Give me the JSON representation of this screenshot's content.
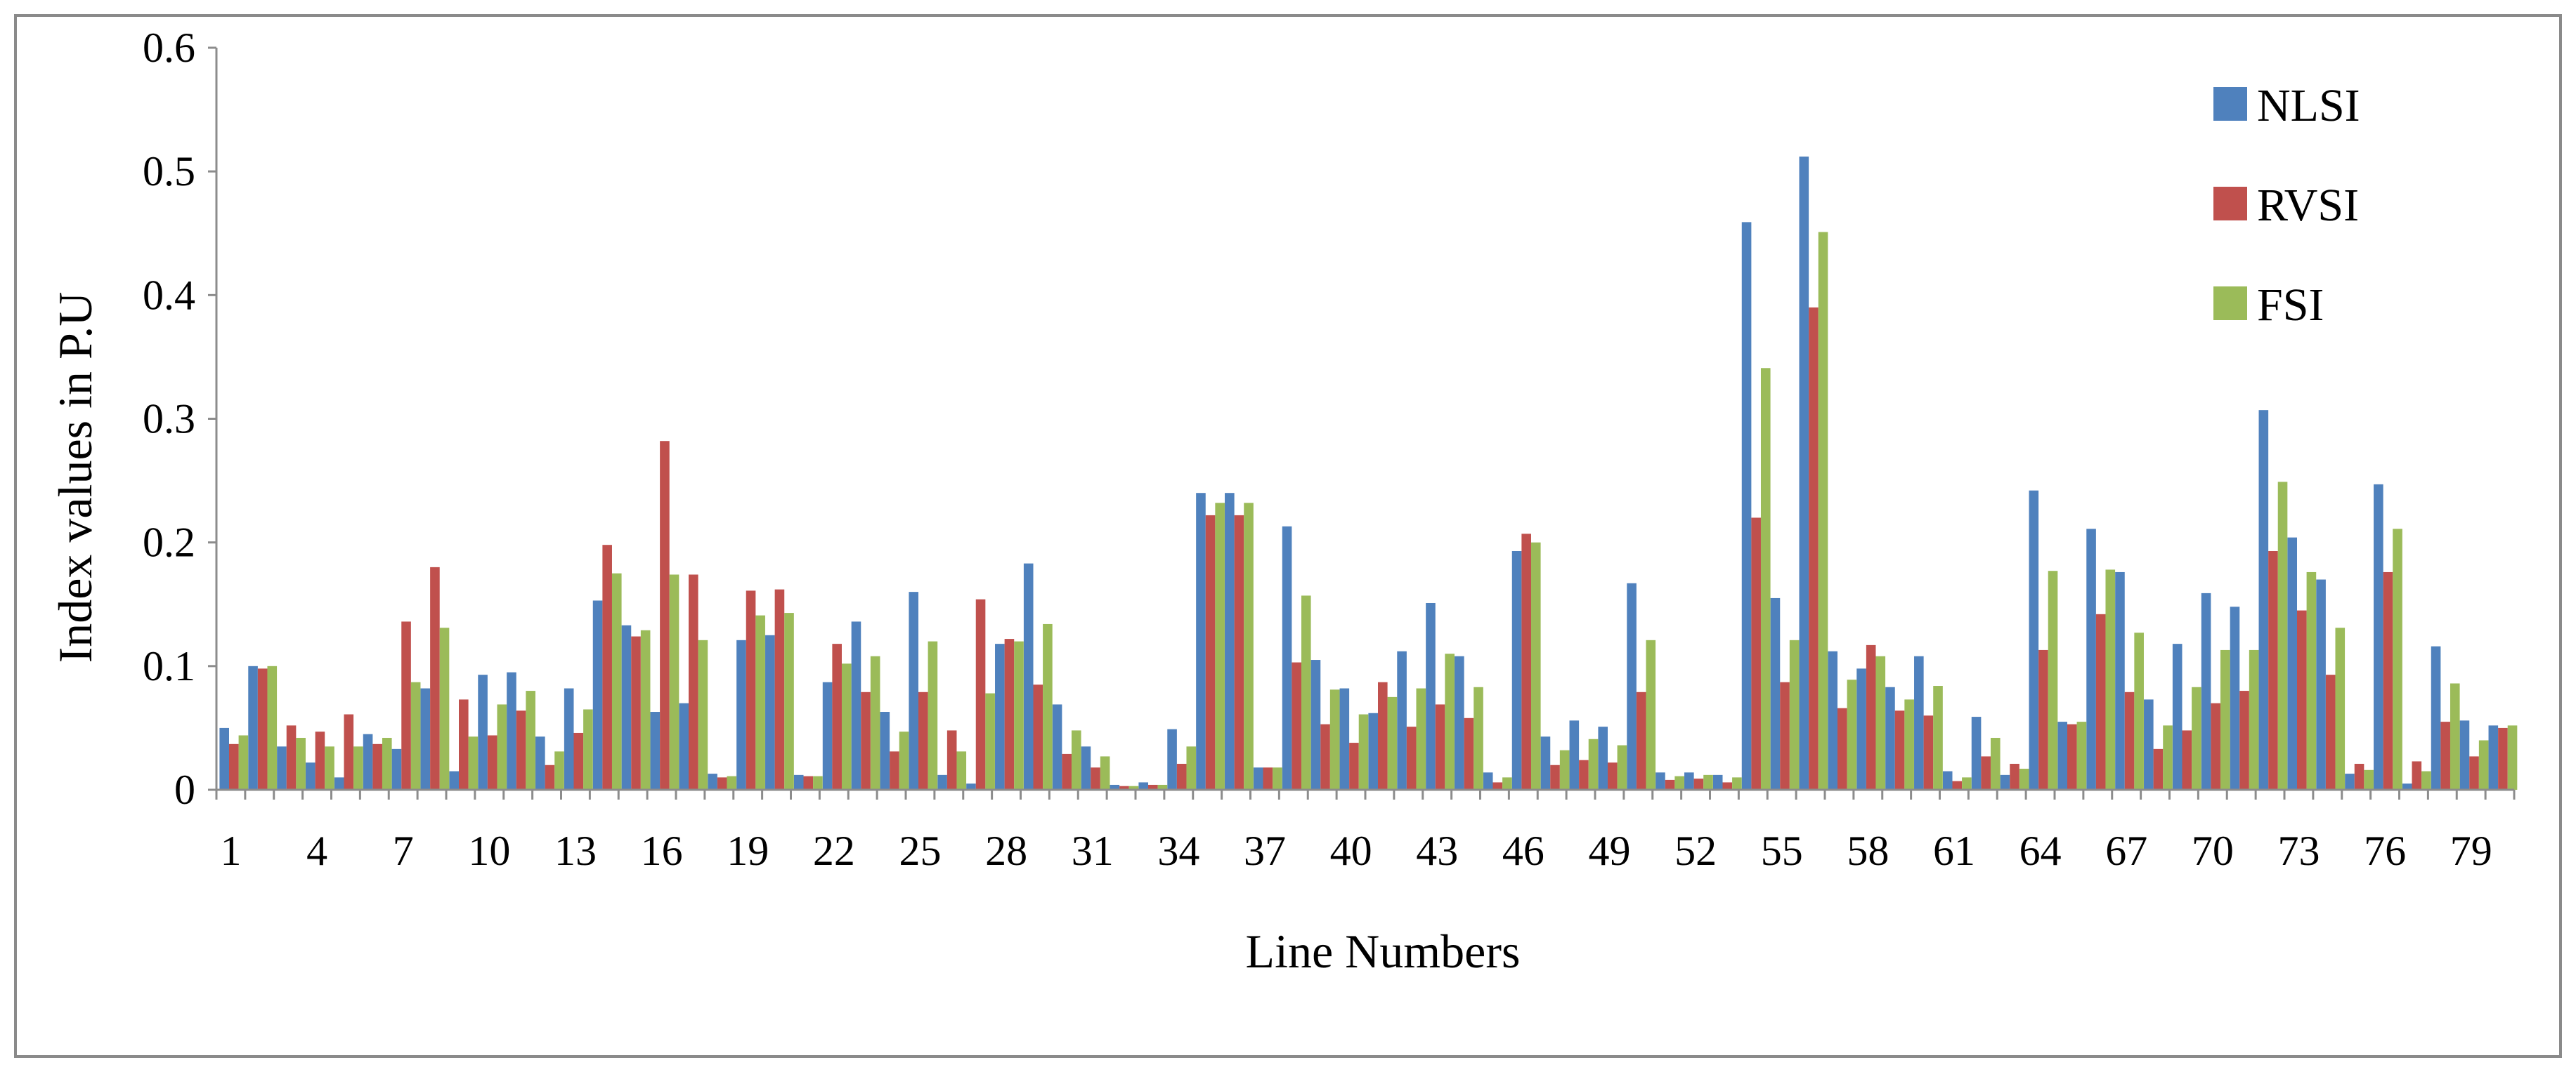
{
  "chart_data": {
    "type": "bar",
    "xlabel": "Line Numbers",
    "ylabel": "Index values in P.U",
    "ylim": [
      0,
      0.6
    ],
    "yticks": [
      "0",
      "0.1",
      "0.2",
      "0.3",
      "0.4",
      "0.5",
      "0.6"
    ],
    "x_tick_labels": [
      "1",
      "4",
      "7",
      "10",
      "13",
      "16",
      "19",
      "22",
      "25",
      "28",
      "31",
      "34",
      "37",
      "40",
      "43",
      "46",
      "49",
      "52",
      "55",
      "58",
      "61",
      "64",
      "67",
      "70",
      "73",
      "76",
      "79"
    ],
    "grid": false,
    "legend_position": "top-right",
    "categories": [
      1,
      2,
      3,
      4,
      5,
      6,
      7,
      8,
      9,
      10,
      11,
      12,
      13,
      14,
      15,
      16,
      17,
      18,
      19,
      20,
      21,
      22,
      23,
      24,
      25,
      26,
      27,
      28,
      29,
      30,
      31,
      32,
      33,
      34,
      35,
      36,
      37,
      38,
      39,
      40,
      41,
      42,
      43,
      44,
      45,
      46,
      47,
      48,
      49,
      50,
      51,
      52,
      53,
      54,
      55,
      56,
      57,
      58,
      59,
      60,
      61,
      62,
      63,
      64,
      65,
      66,
      67,
      68,
      69,
      70,
      71,
      72,
      73,
      74,
      75,
      76,
      77,
      78,
      79,
      80
    ],
    "series": [
      {
        "name": "NLSI",
        "color": "#4F81BD",
        "values": [
          0.05,
          0.1,
          0.035,
          0.022,
          0.01,
          0.045,
          0.033,
          0.082,
          0.015,
          0.093,
          0.095,
          0.043,
          0.082,
          0.153,
          0.133,
          0.063,
          0.07,
          0.013,
          0.121,
          0.125,
          0.012,
          0.087,
          0.136,
          0.063,
          0.16,
          0.012,
          0.005,
          0.118,
          0.183,
          0.069,
          0.035,
          0.004,
          0.006,
          0.049,
          0.24,
          0.24,
          0.018,
          0.213,
          0.105,
          0.082,
          0.062,
          0.112,
          0.151,
          0.108,
          0.014,
          0.193,
          0.043,
          0.056,
          0.051,
          0.167,
          0.014,
          0.014,
          0.012,
          0.459,
          0.155,
          0.512,
          0.112,
          0.098,
          0.083,
          0.108,
          0.015,
          0.059,
          0.012,
          0.242,
          0.055,
          0.211,
          0.176,
          0.073,
          0.118,
          0.159,
          0.148,
          0.307,
          0.204,
          0.17,
          0.013,
          0.247,
          0.005,
          0.116,
          0.056,
          0.052
        ]
      },
      {
        "name": "RVSI",
        "color": "#C0504D",
        "values": [
          0.037,
          0.098,
          0.052,
          0.047,
          0.061,
          0.037,
          0.136,
          0.18,
          0.073,
          0.044,
          0.064,
          0.02,
          0.046,
          0.198,
          0.124,
          0.282,
          0.174,
          0.01,
          0.161,
          0.162,
          0.011,
          0.118,
          0.079,
          0.031,
          0.079,
          0.048,
          0.154,
          0.122,
          0.085,
          0.029,
          0.018,
          0.003,
          0.004,
          0.021,
          0.222,
          0.222,
          0.018,
          0.103,
          0.053,
          0.038,
          0.087,
          0.051,
          0.069,
          0.058,
          0.006,
          0.207,
          0.02,
          0.024,
          0.022,
          0.079,
          0.008,
          0.009,
          0.006,
          0.22,
          0.087,
          0.39,
          0.066,
          0.117,
          0.064,
          0.06,
          0.007,
          0.027,
          0.021,
          0.113,
          0.053,
          0.142,
          0.079,
          0.033,
          0.048,
          0.07,
          0.08,
          0.193,
          0.145,
          0.093,
          0.021,
          0.176,
          0.023,
          0.055,
          0.027,
          0.05
        ]
      },
      {
        "name": "FSI",
        "color": "#9BBB59",
        "values": [
          0.044,
          0.1,
          0.042,
          0.035,
          0.035,
          0.042,
          0.087,
          0.131,
          0.043,
          0.069,
          0.08,
          0.031,
          0.065,
          0.175,
          0.129,
          0.174,
          0.121,
          0.011,
          0.141,
          0.143,
          0.011,
          0.102,
          0.108,
          0.047,
          0.12,
          0.031,
          0.078,
          0.12,
          0.134,
          0.048,
          0.027,
          0.003,
          0.004,
          0.035,
          0.232,
          0.232,
          0.018,
          0.157,
          0.081,
          0.061,
          0.075,
          0.082,
          0.11,
          0.083,
          0.01,
          0.2,
          0.032,
          0.041,
          0.036,
          0.121,
          0.011,
          0.012,
          0.01,
          0.341,
          0.121,
          0.451,
          0.089,
          0.108,
          0.073,
          0.084,
          0.01,
          0.042,
          0.017,
          0.177,
          0.055,
          0.178,
          0.127,
          0.052,
          0.083,
          0.113,
          0.113,
          0.249,
          0.176,
          0.131,
          0.016,
          0.211,
          0.015,
          0.086,
          0.04,
          0.052
        ]
      }
    ]
  }
}
